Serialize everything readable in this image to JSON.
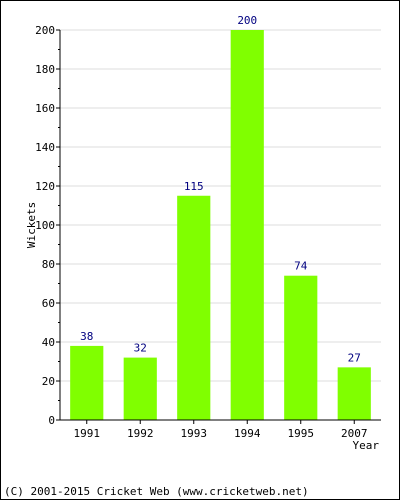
{
  "chart_data": {
    "type": "bar",
    "categories": [
      "1991",
      "1992",
      "1993",
      "1994",
      "1995",
      "2007"
    ],
    "values": [
      38,
      32,
      115,
      200,
      74,
      27
    ],
    "title": "",
    "xlabel": "Year",
    "ylabel": "Wickets",
    "ylim": [
      0,
      200
    ],
    "yticks": [
      "0",
      "20",
      "40",
      "60",
      "80",
      "100",
      "120",
      "140",
      "160",
      "180",
      "200"
    ],
    "grid": true,
    "bar_color": "#80ff00",
    "label_color": "#000080"
  },
  "footer": "(C) 2001-2015 Cricket Web (www.cricketweb.net)"
}
